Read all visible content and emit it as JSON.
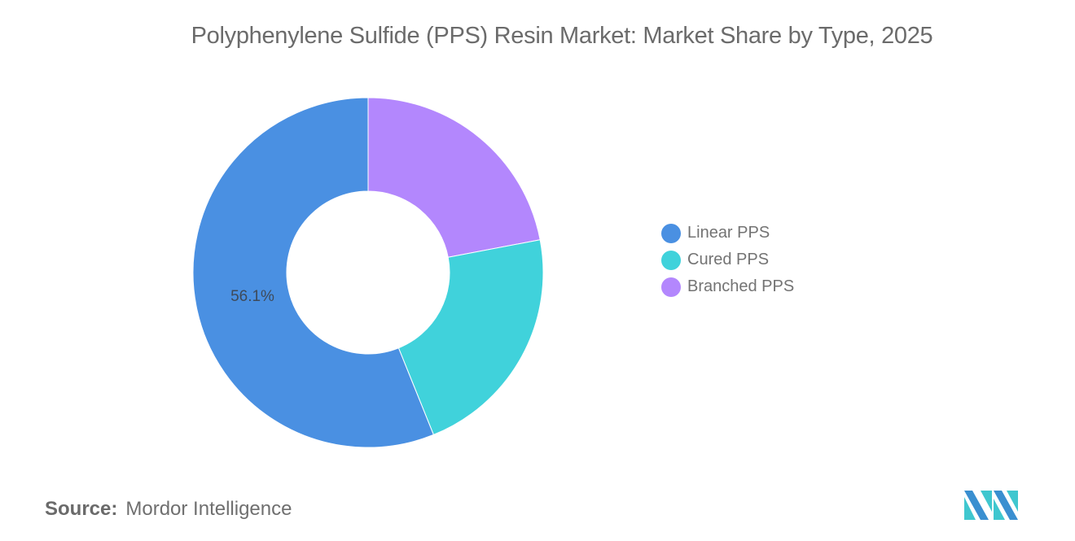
{
  "title": "Polyphenylene Sulfide (PPS) Resin Market: Market Share by Type, 2025",
  "source": {
    "label": "Source:",
    "value": "Mordor Intelligence"
  },
  "legend": [
    {
      "label": "Linear PPS",
      "color": "#4a90e2"
    },
    {
      "label": "Cured PPS",
      "color": "#40d2db"
    },
    {
      "label": "Branched PPS",
      "color": "#b387fd"
    }
  ],
  "slice_labels": {
    "linear": "56.1%"
  },
  "logo": {
    "name": "mordor-intelligence-logo"
  },
  "chart_data": {
    "type": "pie",
    "subtype": "donut",
    "title": "Polyphenylene Sulfide (PPS) Resin Market: Market Share by Type, 2025",
    "categories": [
      "Linear PPS",
      "Cured PPS",
      "Branched PPS"
    ],
    "values": [
      56.1,
      21.9,
      22.0
    ],
    "colors": [
      "#4a90e2",
      "#40d2db",
      "#b387fd"
    ],
    "data_labels": [
      "56.1%",
      "",
      ""
    ],
    "legend_position": "right",
    "start_angle": "12 o'clock, counter-clockwise for Linear PPS",
    "source": "Mordor Intelligence"
  }
}
